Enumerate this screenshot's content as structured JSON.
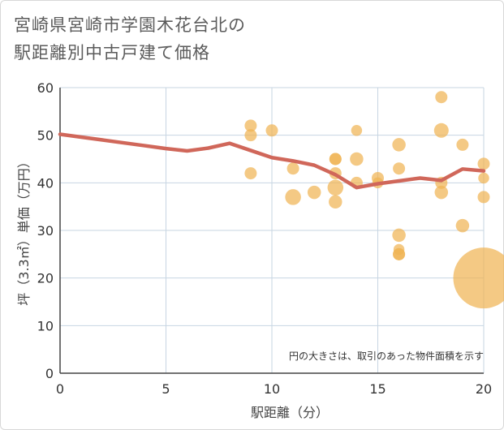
{
  "chart_data": {
    "type": "scatter",
    "title_lines": [
      "宮崎県宮崎市学園木花台北の",
      "駅距離別中古戸建て価格"
    ],
    "xlabel": "駅距離（分）",
    "ylabel": "坪（3.3㎡）単価（万円）",
    "note": "円の大きさは、取引のあった物件面積を示す",
    "xlim": [
      0,
      20
    ],
    "ylim": [
      0,
      60
    ],
    "xticks": [
      0,
      5,
      10,
      15,
      20
    ],
    "yticks": [
      0,
      10,
      20,
      30,
      40,
      50,
      60
    ],
    "grid": true,
    "colors": {
      "bubble": "#f0b455",
      "line": "#d0675a",
      "grid": "#c7d5e2",
      "axis": "#444444"
    },
    "points": [
      {
        "x": 9,
        "y": 52,
        "s": 1.0
      },
      {
        "x": 9,
        "y": 50,
        "s": 1.0
      },
      {
        "x": 9,
        "y": 42,
        "s": 1.0
      },
      {
        "x": 10,
        "y": 51,
        "s": 1.0
      },
      {
        "x": 11,
        "y": 43,
        "s": 1.0
      },
      {
        "x": 11,
        "y": 37,
        "s": 1.3
      },
      {
        "x": 12,
        "y": 38,
        "s": 1.1
      },
      {
        "x": 13,
        "y": 45,
        "s": 1.0
      },
      {
        "x": 13,
        "y": 45,
        "s": 1.0
      },
      {
        "x": 13,
        "y": 42,
        "s": 1.0
      },
      {
        "x": 13,
        "y": 39,
        "s": 1.3
      },
      {
        "x": 13,
        "y": 36,
        "s": 1.1
      },
      {
        "x": 14,
        "y": 51,
        "s": 0.9
      },
      {
        "x": 14,
        "y": 45,
        "s": 1.1
      },
      {
        "x": 14,
        "y": 40,
        "s": 1.0
      },
      {
        "x": 15,
        "y": 41,
        "s": 1.0
      },
      {
        "x": 15,
        "y": 40,
        "s": 0.9
      },
      {
        "x": 16,
        "y": 48,
        "s": 1.1
      },
      {
        "x": 16,
        "y": 43,
        "s": 1.0
      },
      {
        "x": 16,
        "y": 29,
        "s": 1.1
      },
      {
        "x": 16,
        "y": 26,
        "s": 0.9
      },
      {
        "x": 16,
        "y": 25,
        "s": 1.0
      },
      {
        "x": 16,
        "y": 25,
        "s": 1.0
      },
      {
        "x": 18,
        "y": 58,
        "s": 1.0
      },
      {
        "x": 18,
        "y": 51,
        "s": 1.2
      },
      {
        "x": 18,
        "y": 40,
        "s": 1.0
      },
      {
        "x": 18,
        "y": 38,
        "s": 1.1
      },
      {
        "x": 19,
        "y": 48,
        "s": 1.0
      },
      {
        "x": 19,
        "y": 31,
        "s": 1.1
      },
      {
        "x": 20,
        "y": 44,
        "s": 1.0
      },
      {
        "x": 20,
        "y": 41,
        "s": 0.9
      },
      {
        "x": 20,
        "y": 37,
        "s": 1.0
      },
      {
        "x": 20,
        "y": 20,
        "s": 5.0
      }
    ],
    "trend": {
      "x": [
        0,
        1,
        2,
        3,
        4,
        5,
        6,
        7,
        8,
        9,
        10,
        11,
        12,
        13,
        14,
        15,
        16,
        17,
        18,
        19,
        20
      ],
      "y": [
        50.2,
        49.6,
        49.0,
        48.4,
        47.8,
        47.2,
        46.7,
        47.3,
        48.3,
        46.8,
        45.3,
        44.6,
        43.7,
        41.7,
        39.0,
        39.8,
        40.4,
        41.0,
        40.5,
        42.9,
        42.5
      ]
    }
  }
}
